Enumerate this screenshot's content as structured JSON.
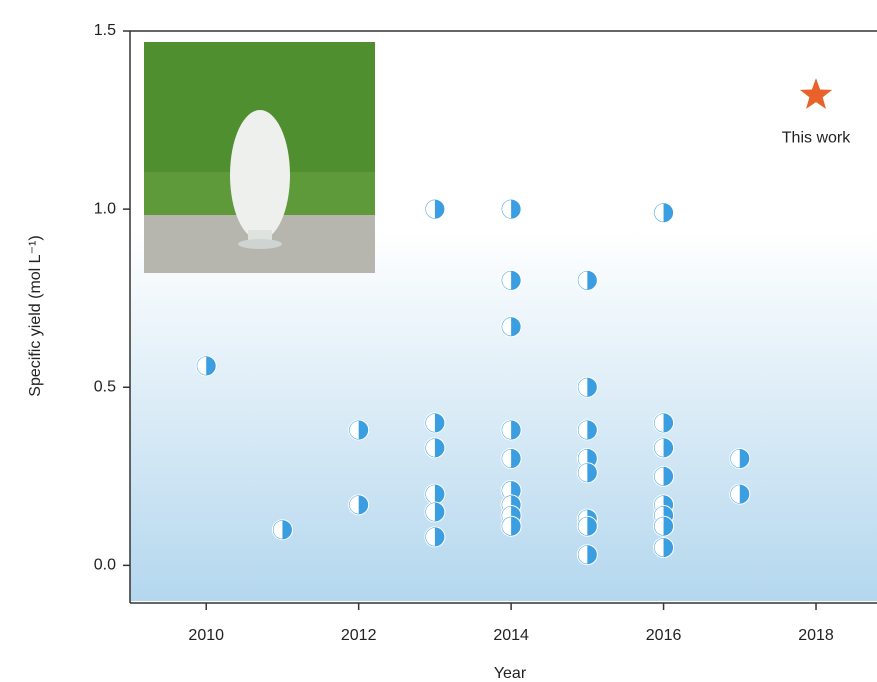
{
  "chart_data": {
    "type": "scatter",
    "xlabel": "Year",
    "ylabel": "Specific yield (mol L⁻¹)",
    "xlim": [
      2009,
      2018.8
    ],
    "ylim": [
      -0.1,
      1.5
    ],
    "xticks": [
      2010,
      2012,
      2014,
      2016,
      2018
    ],
    "yticks": [
      {
        "value": 0,
        "label": "0.0"
      },
      0.5,
      {
        "value": 1,
        "label": "1.0"
      },
      1.5
    ],
    "color": "#3a9ee0",
    "x": [
      2010,
      2011,
      2012,
      2012,
      2013,
      2013,
      2013,
      2013,
      2013,
      2013,
      2014,
      2014,
      2014,
      2014,
      2014,
      2014,
      2014,
      2014,
      2014,
      2015,
      2015,
      2015,
      2015,
      2015,
      2015,
      2015,
      2015,
      2016,
      2016,
      2016,
      2016,
      2016,
      2016,
      2016,
      2016,
      2017,
      2017
    ],
    "y": [
      0.56,
      0.1,
      0.38,
      0.17,
      1.0,
      0.4,
      0.33,
      0.2,
      0.15,
      0.08,
      1.0,
      0.8,
      0.67,
      0.38,
      0.3,
      0.21,
      0.17,
      0.14,
      0.11,
      0.8,
      0.5,
      0.38,
      0.3,
      0.26,
      0.13,
      0.11,
      0.03,
      0.99,
      0.4,
      0.33,
      0.25,
      0.17,
      0.14,
      0.11,
      0.05,
      0.3,
      0.2
    ],
    "highlight": {
      "label": "This work",
      "x": 2018,
      "y": 1.32,
      "color": "#e8622a"
    }
  }
}
